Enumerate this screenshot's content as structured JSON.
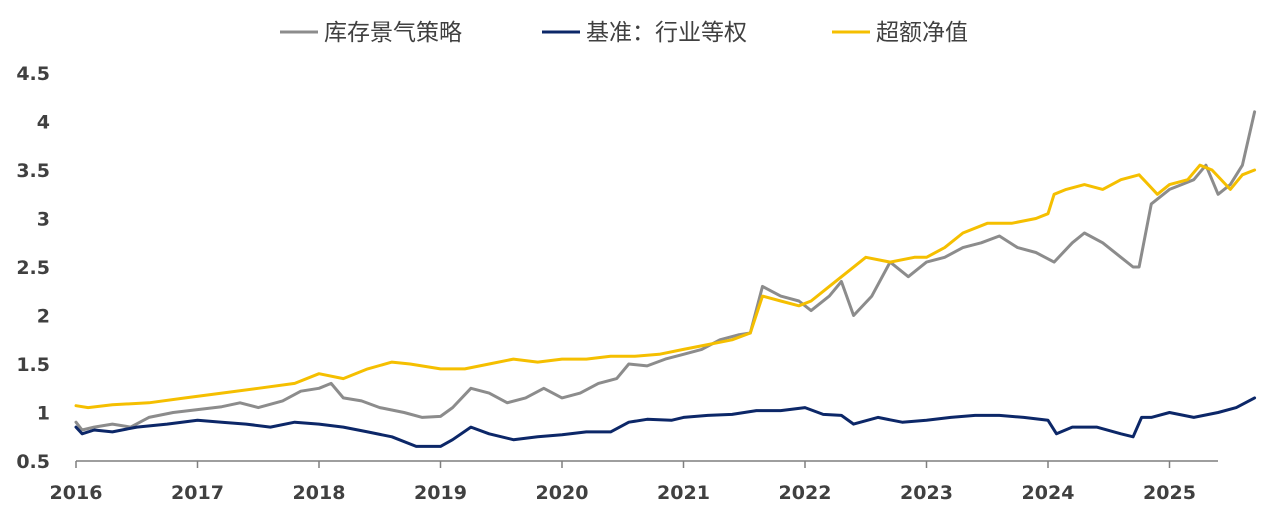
{
  "chart_data": {
    "type": "line",
    "title": "",
    "xlabel": "",
    "ylabel": "",
    "x_ticks": [
      "2016",
      "2017",
      "2018",
      "2019",
      "2020",
      "2021",
      "2022",
      "2023",
      "2024",
      "2025"
    ],
    "y_ticks": [
      "0.5",
      "1",
      "1.5",
      "2",
      "2.5",
      "3",
      "3.5",
      "4",
      "4.5"
    ],
    "xlim": [
      2016.0,
      2025.7
    ],
    "ylim": [
      0.5,
      4.5
    ],
    "grid": false,
    "legend_position": "top-center",
    "series": [
      {
        "name": "库存景气策略",
        "color": "#8c8c8c",
        "x": [
          2016.0,
          2016.05,
          2016.15,
          2016.3,
          2016.45,
          2016.6,
          2016.8,
          2017.0,
          2017.2,
          2017.35,
          2017.5,
          2017.7,
          2017.85,
          2018.0,
          2018.1,
          2018.2,
          2018.35,
          2018.5,
          2018.7,
          2018.85,
          2019.0,
          2019.1,
          2019.25,
          2019.4,
          2019.55,
          2019.7,
          2019.85,
          2020.0,
          2020.15,
          2020.3,
          2020.45,
          2020.55,
          2020.7,
          2020.85,
          2021.0,
          2021.15,
          2021.3,
          2021.45,
          2021.55,
          2021.65,
          2021.8,
          2021.95,
          2022.05,
          2022.2,
          2022.3,
          2022.4,
          2022.55,
          2022.7,
          2022.85,
          2023.0,
          2023.15,
          2023.3,
          2023.45,
          2023.6,
          2023.75,
          2023.9,
          2024.05,
          2024.2,
          2024.3,
          2024.45,
          2024.6,
          2024.7,
          2024.75,
          2024.85,
          2025.0,
          2025.1,
          2025.2,
          2025.3,
          2025.4,
          2025.5,
          2025.6,
          2025.7
        ],
        "y": [
          0.9,
          0.82,
          0.85,
          0.88,
          0.85,
          0.95,
          1.0,
          1.03,
          1.06,
          1.1,
          1.05,
          1.12,
          1.22,
          1.25,
          1.3,
          1.15,
          1.12,
          1.05,
          1.0,
          0.95,
          0.96,
          1.05,
          1.25,
          1.2,
          1.1,
          1.15,
          1.25,
          1.15,
          1.2,
          1.3,
          1.35,
          1.5,
          1.48,
          1.55,
          1.6,
          1.65,
          1.75,
          1.8,
          1.82,
          2.3,
          2.2,
          2.15,
          2.05,
          2.2,
          2.35,
          2.0,
          2.2,
          2.55,
          2.4,
          2.55,
          2.6,
          2.7,
          2.75,
          2.82,
          2.7,
          2.65,
          2.55,
          2.75,
          2.85,
          2.75,
          2.6,
          2.5,
          2.5,
          3.15,
          3.3,
          3.35,
          3.4,
          3.55,
          3.25,
          3.35,
          3.55,
          4.1
        ]
      },
      {
        "name": "基准：行业等权",
        "color": "#0c2768",
        "x": [
          2016.0,
          2016.05,
          2016.15,
          2016.3,
          2016.5,
          2016.75,
          2017.0,
          2017.2,
          2017.4,
          2017.6,
          2017.8,
          2018.0,
          2018.2,
          2018.4,
          2018.6,
          2018.8,
          2019.0,
          2019.1,
          2019.25,
          2019.4,
          2019.6,
          2019.8,
          2020.0,
          2020.2,
          2020.4,
          2020.55,
          2020.7,
          2020.9,
          2021.0,
          2021.2,
          2021.4,
          2021.6,
          2021.8,
          2022.0,
          2022.15,
          2022.3,
          2022.4,
          2022.6,
          2022.8,
          2023.0,
          2023.2,
          2023.4,
          2023.6,
          2023.8,
          2024.0,
          2024.07,
          2024.2,
          2024.4,
          2024.6,
          2024.7,
          2024.77,
          2024.85,
          2025.0,
          2025.2,
          2025.4,
          2025.55,
          2025.7
        ],
        "y": [
          0.85,
          0.78,
          0.82,
          0.8,
          0.85,
          0.88,
          0.92,
          0.9,
          0.88,
          0.85,
          0.9,
          0.88,
          0.85,
          0.8,
          0.75,
          0.65,
          0.65,
          0.72,
          0.85,
          0.78,
          0.72,
          0.75,
          0.77,
          0.8,
          0.8,
          0.9,
          0.93,
          0.92,
          0.95,
          0.97,
          0.98,
          1.02,
          1.02,
          1.05,
          0.98,
          0.97,
          0.88,
          0.95,
          0.9,
          0.92,
          0.95,
          0.97,
          0.97,
          0.95,
          0.92,
          0.78,
          0.85,
          0.85,
          0.78,
          0.75,
          0.95,
          0.95,
          1.0,
          0.95,
          1.0,
          1.05,
          1.15
        ]
      },
      {
        "name": "超额净值",
        "color": "#f5bf00",
        "x": [
          2016.0,
          2016.1,
          2016.3,
          2016.6,
          2016.9,
          2017.2,
          2017.5,
          2017.8,
          2018.0,
          2018.2,
          2018.4,
          2018.6,
          2018.75,
          2019.0,
          2019.2,
          2019.4,
          2019.6,
          2019.8,
          2020.0,
          2020.2,
          2020.4,
          2020.6,
          2020.8,
          2021.0,
          2021.2,
          2021.4,
          2021.55,
          2021.65,
          2021.8,
          2021.95,
          2022.05,
          2022.2,
          2022.35,
          2022.5,
          2022.7,
          2022.9,
          2023.0,
          2023.15,
          2023.3,
          2023.5,
          2023.7,
          2023.9,
          2024.0,
          2024.05,
          2024.15,
          2024.3,
          2024.45,
          2024.6,
          2024.75,
          2024.9,
          2025.0,
          2025.15,
          2025.25,
          2025.35,
          2025.5,
          2025.6,
          2025.7
        ],
        "y": [
          1.07,
          1.05,
          1.08,
          1.1,
          1.15,
          1.2,
          1.25,
          1.3,
          1.4,
          1.35,
          1.45,
          1.52,
          1.5,
          1.45,
          1.45,
          1.5,
          1.55,
          1.52,
          1.55,
          1.55,
          1.58,
          1.58,
          1.6,
          1.65,
          1.7,
          1.75,
          1.82,
          2.2,
          2.15,
          2.1,
          2.15,
          2.3,
          2.45,
          2.6,
          2.55,
          2.6,
          2.6,
          2.7,
          2.85,
          2.95,
          2.95,
          3.0,
          3.05,
          3.25,
          3.3,
          3.35,
          3.3,
          3.4,
          3.45,
          3.25,
          3.35,
          3.4,
          3.55,
          3.5,
          3.3,
          3.45,
          3.5
        ]
      }
    ]
  }
}
